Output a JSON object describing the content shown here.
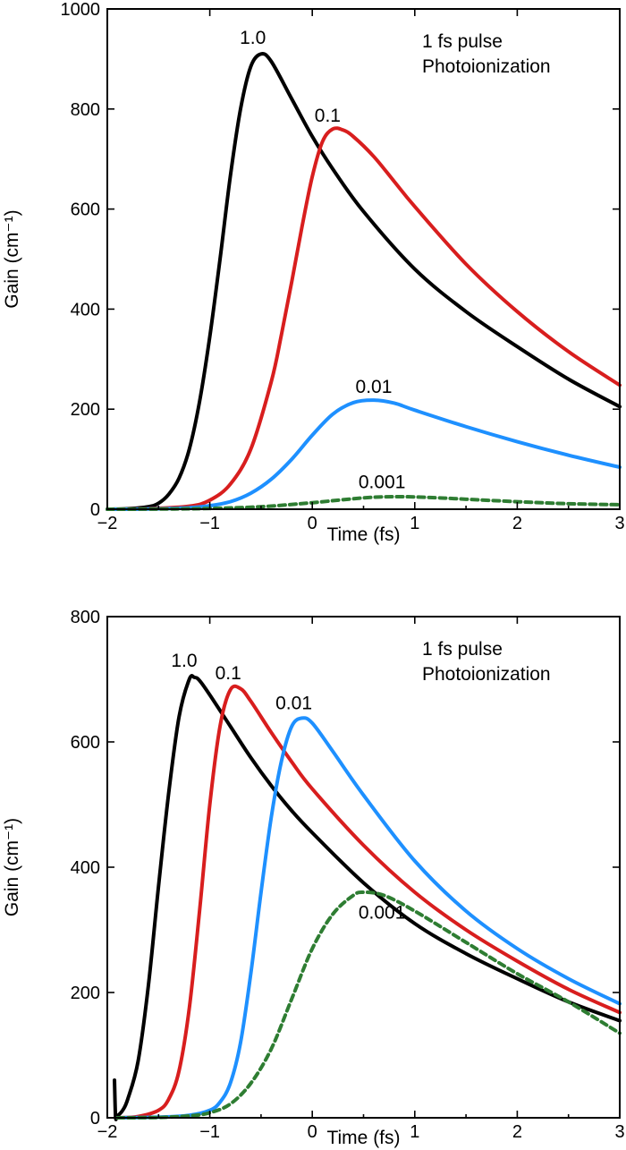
{
  "chart_data": [
    {
      "type": "line",
      "xlabel": "Time (fs)",
      "ylabel": "Gain (cm⁻¹)",
      "xlim": [
        -2,
        3
      ],
      "ylim": [
        0,
        1000
      ],
      "xticks": [
        -2,
        -1,
        0,
        1,
        2,
        3
      ],
      "yticks": [
        0,
        200,
        400,
        600,
        800,
        1000
      ],
      "xtick_labels": [
        "−2",
        "−1",
        "0",
        "1",
        "2",
        "3"
      ],
      "ytick_labels": [
        "0",
        "200",
        "400",
        "600",
        "800",
        "1000"
      ],
      "grid": false,
      "annotation": [
        "1 fs pulse",
        "Photoionization"
      ],
      "series": [
        {
          "name": "1.0",
          "color": "#000000",
          "dash": false,
          "x": [
            -2.0,
            -1.8,
            -1.6,
            -1.5,
            -1.4,
            -1.3,
            -1.2,
            -1.1,
            -1.0,
            -0.9,
            -0.8,
            -0.7,
            -0.6,
            -0.5,
            -0.4,
            -0.2,
            0.0,
            0.2,
            0.5,
            1.0,
            1.5,
            2.0,
            2.5,
            3.0
          ],
          "y": [
            0,
            1,
            5,
            12,
            30,
            62,
            120,
            215,
            345,
            500,
            665,
            800,
            885,
            910,
            895,
            820,
            745,
            680,
            595,
            480,
            395,
            325,
            260,
            205
          ],
          "label_pos": [
            -0.58,
            930
          ]
        },
        {
          "name": "0.1",
          "color": "#d81e1e",
          "dash": false,
          "x": [
            -2.0,
            -1.6,
            -1.2,
            -1.0,
            -0.8,
            -0.6,
            -0.4,
            -0.3,
            -0.2,
            -0.1,
            0.0,
            0.1,
            0.2,
            0.3,
            0.4,
            0.6,
            0.8,
            1.0,
            1.5,
            2.0,
            2.5,
            3.0
          ],
          "y": [
            0,
            1,
            6,
            18,
            50,
            120,
            255,
            350,
            455,
            565,
            665,
            735,
            760,
            758,
            745,
            705,
            655,
            605,
            490,
            395,
            315,
            248
          ],
          "label_pos": [
            0.15,
            775
          ]
        },
        {
          "name": "0.01",
          "color": "#1e90ff",
          "dash": false,
          "x": [
            -2.0,
            -1.6,
            -1.2,
            -1.0,
            -0.8,
            -0.6,
            -0.4,
            -0.2,
            0.0,
            0.2,
            0.4,
            0.6,
            0.8,
            1.0,
            1.5,
            2.0,
            2.5,
            3.0
          ],
          "y": [
            0,
            0.5,
            3,
            7,
            15,
            32,
            60,
            100,
            148,
            190,
            213,
            218,
            212,
            198,
            165,
            135,
            108,
            84
          ],
          "label_pos": [
            0.6,
            233
          ]
        },
        {
          "name": "0.001",
          "color": "#2e7d32",
          "dash": true,
          "x": [
            -2.0,
            -1.5,
            -1.0,
            -0.5,
            0.0,
            0.3,
            0.6,
            0.9,
            1.2,
            1.5,
            2.0,
            2.5,
            3.0
          ],
          "y": [
            0,
            0.3,
            1.5,
            5,
            13,
            19,
            24,
            25,
            23,
            20,
            15,
            11,
            9
          ],
          "label_pos": [
            0.68,
            42
          ]
        }
      ]
    },
    {
      "type": "line",
      "xlabel": "Time (fs)",
      "ylabel": "Gain (cm⁻¹)",
      "xlim": [
        -2,
        3
      ],
      "ylim": [
        0,
        800
      ],
      "xticks": [
        -2,
        -1,
        0,
        1,
        2,
        3
      ],
      "yticks": [
        0,
        200,
        400,
        600,
        800
      ],
      "xtick_labels": [
        "−2",
        "−1",
        "0",
        "1",
        "2",
        "3"
      ],
      "ytick_labels": [
        "0",
        "200",
        "400",
        "600",
        "800"
      ],
      "grid": false,
      "annotation": [
        "1 fs pulse",
        "Photoionization"
      ],
      "series": [
        {
          "name": "1.0",
          "color": "#000000",
          "dash": false,
          "x": [
            -1.93,
            -1.92,
            -1.91,
            -1.9,
            -1.85,
            -1.8,
            -1.7,
            -1.6,
            -1.5,
            -1.4,
            -1.3,
            -1.2,
            -1.15,
            -1.1,
            -1.0,
            -0.8,
            -0.6,
            -0.4,
            -0.2,
            0.0,
            0.5,
            1.0,
            1.5,
            2.0,
            2.5,
            3.0
          ],
          "y": [
            60,
            2,
            1,
            3,
            12,
            30,
            90,
            210,
            370,
            520,
            640,
            700,
            703,
            698,
            675,
            625,
            575,
            530,
            490,
            455,
            375,
            310,
            262,
            222,
            185,
            155
          ],
          "label_pos": [
            -1.25,
            720
          ]
        },
        {
          "name": "0.1",
          "color": "#d81e1e",
          "dash": false,
          "x": [
            -1.9,
            -1.7,
            -1.5,
            -1.4,
            -1.3,
            -1.2,
            -1.1,
            -1.0,
            -0.9,
            -0.8,
            -0.7,
            -0.6,
            -0.4,
            -0.2,
            0.0,
            0.5,
            1.0,
            1.5,
            2.0,
            2.5,
            3.0
          ],
          "y": [
            0,
            2,
            12,
            30,
            75,
            175,
            330,
            500,
            625,
            683,
            685,
            665,
            615,
            568,
            525,
            435,
            360,
            300,
            250,
            205,
            168
          ],
          "label_pos": [
            -0.82,
            700
          ]
        },
        {
          "name": "0.01",
          "color": "#1e90ff",
          "dash": false,
          "x": [
            -1.9,
            -1.5,
            -1.2,
            -1.0,
            -0.9,
            -0.8,
            -0.7,
            -0.6,
            -0.5,
            -0.4,
            -0.3,
            -0.2,
            -0.1,
            0.0,
            0.2,
            0.5,
            1.0,
            1.5,
            2.0,
            2.5,
            3.0
          ],
          "y": [
            0,
            1,
            4,
            12,
            25,
            55,
            120,
            230,
            360,
            480,
            570,
            625,
            638,
            630,
            585,
            515,
            410,
            330,
            270,
            222,
            182
          ],
          "label_pos": [
            -0.18,
            652
          ]
        },
        {
          "name": "0.001",
          "color": "#2e7d32",
          "dash": true,
          "x": [
            -1.9,
            -1.5,
            -1.2,
            -1.0,
            -0.8,
            -0.6,
            -0.4,
            -0.2,
            0.0,
            0.2,
            0.4,
            0.5,
            0.7,
            1.0,
            1.5,
            2.0,
            2.5,
            3.0
          ],
          "y": [
            0,
            0.5,
            3,
            8,
            22,
            55,
            110,
            190,
            270,
            325,
            355,
            360,
            355,
            330,
            280,
            230,
            185,
            135
          ],
          "label_pos": [
            0.68,
            318
          ]
        }
      ]
    }
  ]
}
